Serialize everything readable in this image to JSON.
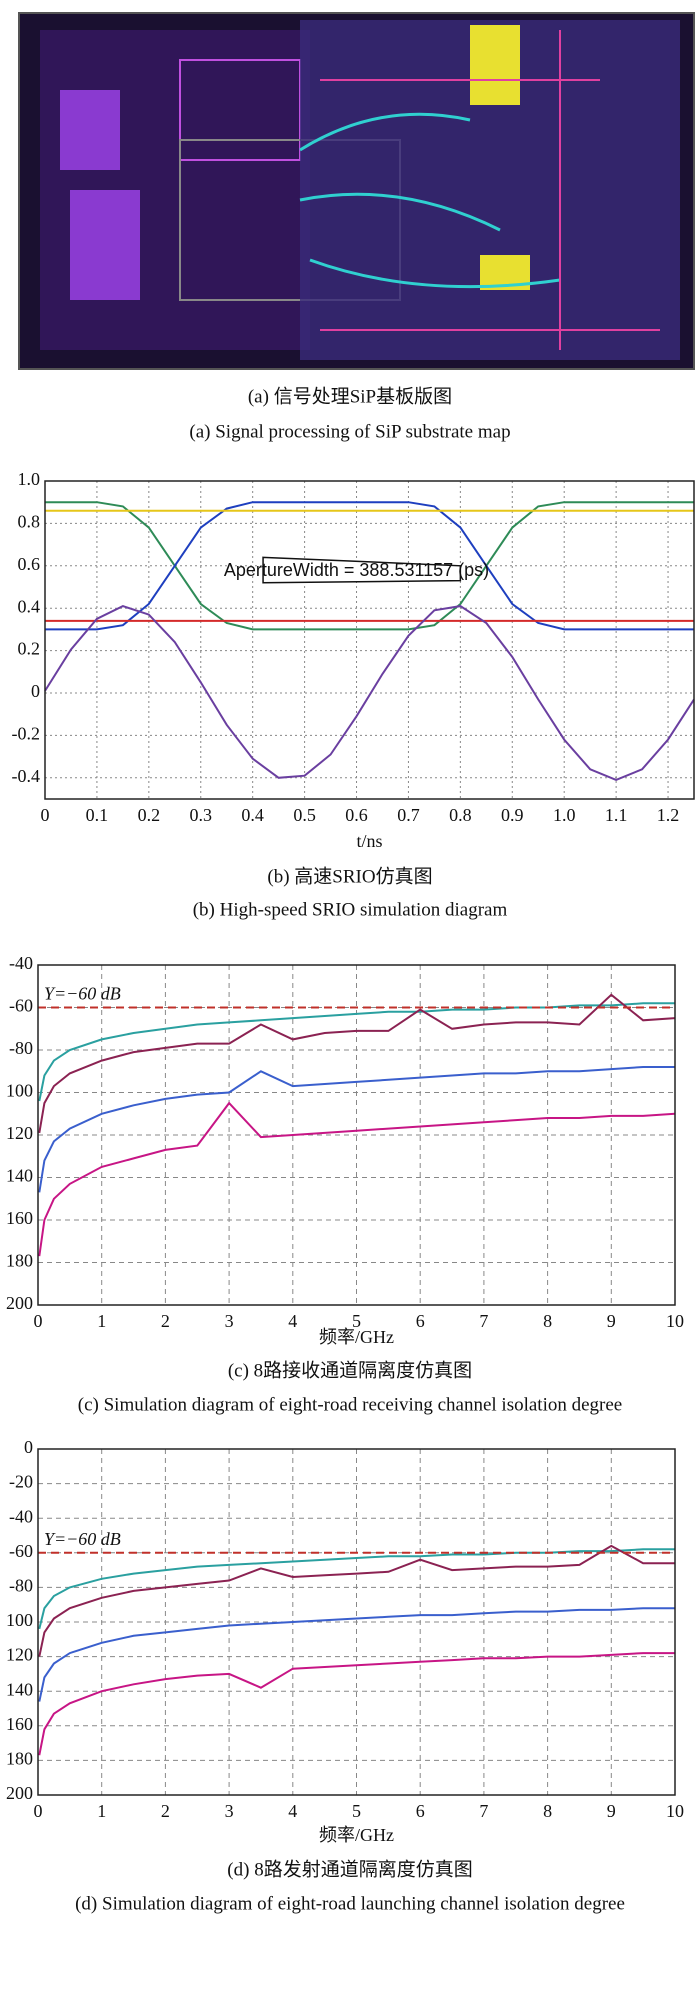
{
  "image_panel": {
    "caption_cn": "(a) 信号处理SiP基板版图",
    "caption_en": "(a) Signal processing of SiP substrate map"
  },
  "chart_data": [
    {
      "type": "line",
      "caption_cn": "(b) 高速SRIO仿真图",
      "caption_en": "(b) High-speed SRIO simulation diagram",
      "x_label": "t/ns",
      "annotation": {
        "text": "ApertureWidth = 388.531157 (ps)"
      },
      "x": [
        0,
        0.05,
        0.1,
        0.15,
        0.2,
        0.25,
        0.3,
        0.35,
        0.4,
        0.45,
        0.5,
        0.55,
        0.6,
        0.65,
        0.7,
        0.75,
        0.8,
        0.85,
        0.9,
        0.95,
        1,
        1.05,
        1.1,
        1.15,
        1.2,
        1.25
      ],
      "xlim": [
        0,
        1.25
      ],
      "ylim": [
        -0.5,
        1
      ],
      "xticks": [
        0,
        0.1,
        0.2,
        0.3,
        0.4,
        0.5,
        0.6,
        0.7,
        0.8,
        0.9,
        {
          "value": 1,
          "label": "1.0"
        },
        1.1,
        1.2
      ],
      "yticks": [
        {
          "value": 1,
          "label": "1.0"
        },
        0.8,
        0.6,
        0.4,
        0.2,
        0,
        -0.2,
        -0.4
      ],
      "grid": true,
      "series": [
        {
          "color": "#2e8b57",
          "values": [
            0.9,
            0.9,
            0.9,
            0.88,
            0.78,
            0.6,
            0.42,
            0.33,
            0.3,
            0.3,
            0.3,
            0.3,
            0.3,
            0.3,
            0.3,
            0.32,
            0.42,
            0.6,
            0.78,
            0.88,
            0.9,
            0.9,
            0.9,
            0.9,
            0.9,
            0.9
          ]
        },
        {
          "color": "#1e3fbf",
          "values": [
            0.3,
            0.3,
            0.3,
            0.32,
            0.42,
            0.6,
            0.78,
            0.87,
            0.9,
            0.9,
            0.9,
            0.9,
            0.9,
            0.9,
            0.9,
            0.88,
            0.78,
            0.6,
            0.42,
            0.33,
            0.3,
            0.3,
            0.3,
            0.3,
            0.3,
            0.3
          ]
        },
        {
          "color": "#e6c619",
          "values": [
            0.86,
            0.86,
            0.86,
            0.86,
            0.86,
            0.86,
            0.86,
            0.86,
            0.86,
            0.86,
            0.86,
            0.86,
            0.86,
            0.86,
            0.86,
            0.86,
            0.86,
            0.86,
            0.86,
            0.86,
            0.86,
            0.86,
            0.86,
            0.86,
            0.86,
            0.86
          ]
        },
        {
          "color": "#d42a2a",
          "values": [
            0.34,
            0.34,
            0.34,
            0.34,
            0.34,
            0.34,
            0.34,
            0.34,
            0.34,
            0.34,
            0.34,
            0.34,
            0.34,
            0.34,
            0.34,
            0.34,
            0.34,
            0.34,
            0.34,
            0.34,
            0.34,
            0.34,
            0.34,
            0.34,
            0.34,
            0.34
          ]
        },
        {
          "color": "#6a3fa0",
          "values": [
            0.01,
            0.205,
            0.35,
            0.41,
            0.37,
            0.24,
            0.05,
            -0.15,
            -0.31,
            -0.4,
            -0.39,
            -0.29,
            -0.11,
            0.09,
            0.27,
            0.39,
            0.41,
            0.33,
            0.17,
            -0.03,
            -0.22,
            -0.36,
            -0.41,
            -0.36,
            -0.22,
            -0.03
          ]
        }
      ]
    },
    {
      "type": "line",
      "caption_cn": "(c) 8路接收通道隔离度仿真图",
      "caption_en": "(c) Simulation diagram of eight-road receiving channel isolation degree",
      "x_label": "频率/GHz",
      "annotation": {
        "text": "Y=−60 dB",
        "y": -60
      },
      "x": [
        0.02,
        0.1,
        0.25,
        0.5,
        1,
        1.5,
        2,
        2.5,
        3,
        3.5,
        4,
        4.5,
        5,
        5.5,
        6,
        6.5,
        7,
        7.5,
        8,
        8.5,
        9,
        9.5,
        10
      ],
      "xlim": [
        0,
        10
      ],
      "ylim": [
        -200,
        -40
      ],
      "xticks": [
        0,
        1,
        2,
        3,
        4,
        5,
        6,
        7,
        8,
        9,
        10
      ],
      "yticks": [
        -40,
        -60,
        -80,
        {
          "value": -100,
          "label": "100"
        },
        {
          "value": -120,
          "label": "120"
        },
        {
          "value": -140,
          "label": "140"
        },
        {
          "value": -160,
          "label": "160"
        },
        {
          "value": -180,
          "label": "180"
        },
        {
          "value": -200,
          "label": "200"
        }
      ],
      "grid": true,
      "series": [
        {
          "color": "#2aa0a0",
          "values": [
            -104,
            -92,
            -85,
            -80,
            -75,
            -72,
            -70,
            -68,
            -67,
            -66,
            -65,
            -64,
            -63,
            -62,
            -62,
            -61,
            -61,
            -60,
            -60,
            -59,
            -59,
            -58,
            -58
          ]
        },
        {
          "color": "#8b2252",
          "values": [
            -119,
            -105,
            -97,
            -91,
            -85,
            -81,
            -79,
            -77,
            -77,
            -68,
            -75,
            -72,
            -71,
            -71,
            -61,
            -70,
            -68,
            -67,
            -67,
            -68,
            -54,
            -66,
            -65
          ]
        },
        {
          "color": "#3a5fcd",
          "values": [
            -147,
            -132,
            -123,
            -117,
            -110,
            -106,
            -103,
            -101,
            -100,
            -90,
            -97,
            -96,
            -95,
            -94,
            -93,
            -92,
            -91,
            -91,
            -90,
            -90,
            -89,
            -88,
            -88
          ]
        },
        {
          "color": "#c71585",
          "values": [
            -177,
            -160,
            -150,
            -143,
            -135,
            -131,
            -127,
            -125,
            -105,
            -121,
            -120,
            -119,
            -118,
            -117,
            -116,
            -115,
            -114,
            -113,
            -112,
            -112,
            -111,
            -111,
            -110
          ]
        }
      ]
    },
    {
      "type": "line",
      "caption_cn": "(d) 8路发射通道隔离度仿真图",
      "caption_en": "(d) Simulation diagram of eight-road launching channel isolation degree",
      "x_label": "频率/GHz",
      "annotation": {
        "text": "Y=−60 dB",
        "y": -60
      },
      "x": [
        0.02,
        0.1,
        0.25,
        0.5,
        1,
        1.5,
        2,
        2.5,
        3,
        3.5,
        4,
        4.5,
        5,
        5.5,
        6,
        6.5,
        7,
        7.5,
        8,
        8.5,
        9,
        9.5,
        10
      ],
      "xlim": [
        0,
        10
      ],
      "ylim": [
        -200,
        0
      ],
      "xticks": [
        0,
        1,
        2,
        3,
        4,
        5,
        6,
        7,
        8,
        9,
        10
      ],
      "yticks": [
        0,
        -20,
        -40,
        -60,
        -80,
        {
          "value": -100,
          "label": "100"
        },
        {
          "value": -120,
          "label": "120"
        },
        {
          "value": -140,
          "label": "140"
        },
        {
          "value": -160,
          "label": "160"
        },
        {
          "value": -180,
          "label": "180"
        },
        {
          "value": -200,
          "label": "200"
        }
      ],
      "grid": true,
      "series": [
        {
          "color": "#2aa0a0",
          "values": [
            -104,
            -92,
            -85,
            -80,
            -75,
            -72,
            -70,
            -68,
            -67,
            -66,
            -65,
            -64,
            -63,
            -62,
            -62,
            -61,
            -61,
            -60,
            -60,
            -59,
            -59,
            -58,
            -58
          ]
        },
        {
          "color": "#8b2252",
          "values": [
            -120,
            -106,
            -98,
            -92,
            -86,
            -82,
            -80,
            -78,
            -76,
            -69,
            -74,
            -73,
            -72,
            -71,
            -64,
            -70,
            -69,
            -68,
            -68,
            -67,
            -56,
            -66,
            -66
          ]
        },
        {
          "color": "#3a5fcd",
          "values": [
            -146,
            -132,
            -124,
            -118,
            -112,
            -108,
            -106,
            -104,
            -102,
            -101,
            -100,
            -99,
            -98,
            -97,
            -96,
            -96,
            -95,
            -94,
            -94,
            -93,
            -93,
            -92,
            -92
          ]
        },
        {
          "color": "#c71585",
          "values": [
            -177,
            -162,
            -153,
            -147,
            -140,
            -136,
            -133,
            -131,
            -130,
            -138,
            -127,
            -126,
            -125,
            -124,
            -123,
            -122,
            -121,
            -121,
            -120,
            -120,
            -119,
            -118,
            -118
          ]
        }
      ]
    }
  ]
}
